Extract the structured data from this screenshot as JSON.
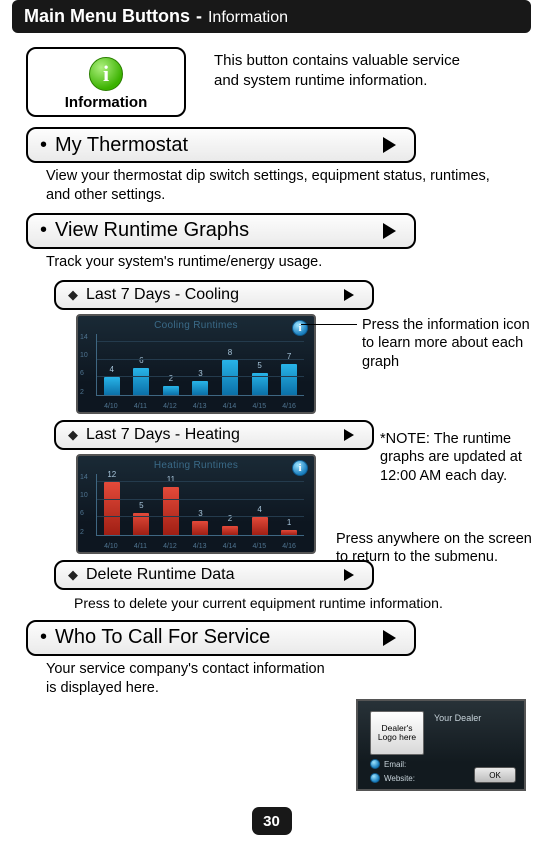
{
  "header": {
    "main": "Main Menu Buttons",
    "sub": "Information"
  },
  "intro": {
    "button_label": "Information",
    "body": "This button contains valuable service and system runtime information."
  },
  "items": {
    "my_thermostat": {
      "label": "My Thermostat",
      "desc": "View your thermostat dip switch settings, equipment status, runtimes, and other settings."
    },
    "view_runtime": {
      "label": "View Runtime Graphs",
      "desc": "Track your system's runtime/energy usage.",
      "sub_cooling": {
        "label": "Last 7 Days - Cooling"
      },
      "sub_heating": {
        "label": "Last 7 Days - Heating"
      },
      "sub_delete": {
        "label": "Delete Runtime Data",
        "desc": "Press to delete your current equipment runtime information."
      },
      "note_info_icon": "Press the information icon to learn more about each graph",
      "note_update": "*NOTE: The runtime graphs are updated at 12:00 AM each day.",
      "note_return": "Press anywhere on the screen to return to the submenu."
    },
    "who_to_call": {
      "label": "Who To Call For Service",
      "desc": "Your service company's contact information is displayed here."
    }
  },
  "cooling_chart": {
    "type": "bar",
    "title": "Cooling Runtimes",
    "categories": [
      "4/10",
      "4/11",
      "4/12",
      "4/13",
      "4/14",
      "4/15",
      "4/16"
    ],
    "values": [
      4,
      6,
      2,
      3,
      8,
      5,
      7
    ],
    "ymax": 14,
    "ytick_step": 4,
    "bar_color": "linear-gradient(#28b4e8,#0b70a8)",
    "background_colors": {
      "top": "#1a2a36",
      "bottom": "#0d1620"
    },
    "grid_color": "#243b4d",
    "axis_color": "#3f6782",
    "label_color": "#4f7490",
    "value_color": "#a7c5da"
  },
  "heating_chart": {
    "type": "bar",
    "title": "Heating Runtimes",
    "categories": [
      "4/10",
      "4/11",
      "4/12",
      "4/13",
      "4/14",
      "4/15",
      "4/16"
    ],
    "values": [
      12,
      5,
      11,
      3,
      2,
      4,
      1
    ],
    "ymax": 14,
    "ytick_step": 4,
    "bar_color": "linear-gradient(#e34a3a,#a01f14)",
    "background_colors": {
      "top": "#1a2a36",
      "bottom": "#0d1620"
    },
    "grid_color": "#243b4d",
    "axis_color": "#3f6782",
    "label_color": "#4f7490",
    "value_color": "#a7c5da"
  },
  "dealer_panel": {
    "logo_text": "Dealer's Logo here",
    "title": "Your Dealer",
    "email_label": "Email:",
    "website_label": "Website:",
    "ok": "OK"
  },
  "page_number": "30"
}
